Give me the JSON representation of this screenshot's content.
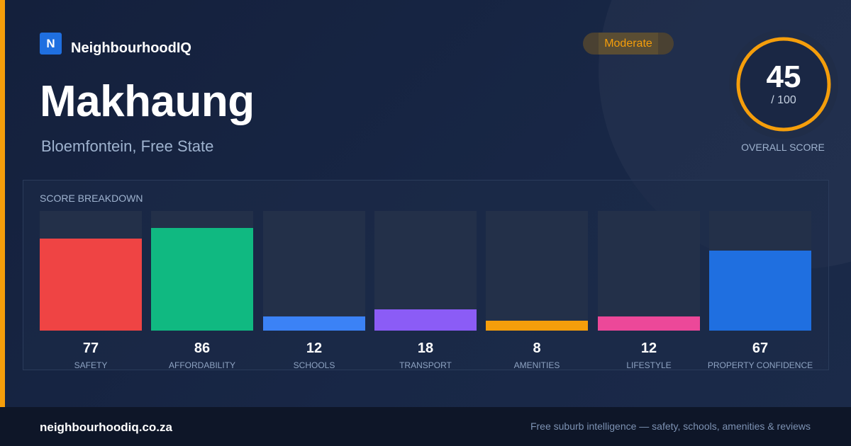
{
  "brand": {
    "logo_letter": "N",
    "name": "NeighbourhoodIQ"
  },
  "badge": {
    "label": "Moderate"
  },
  "suburb": {
    "name": "Makhaung",
    "location": "Bloemfontein, Free State"
  },
  "overall": {
    "score": "45",
    "denominator": "/ 100",
    "caption": "OVERALL SCORE",
    "ring_color": "#f59e0b"
  },
  "breakdown": {
    "title": "SCORE BREAKDOWN",
    "items": [
      {
        "label": "SAFETY",
        "value": 77,
        "color": "#ef4444"
      },
      {
        "label": "AFFORDABILITY",
        "value": 86,
        "color": "#10b981"
      },
      {
        "label": "SCHOOLS",
        "value": 12,
        "color": "#3b82f6"
      },
      {
        "label": "TRANSPORT",
        "value": 18,
        "color": "#8b5cf6"
      },
      {
        "label": "AMENITIES",
        "value": 8,
        "color": "#f59e0b"
      },
      {
        "label": "LIFESTYLE",
        "value": 12,
        "color": "#ec4899"
      },
      {
        "label": "PROPERTY CONFIDENCE",
        "value": 67,
        "color": "#1f6fe0"
      }
    ]
  },
  "footer": {
    "url": "neighbourhoodiq.co.za",
    "tagline": "Free suburb intelligence — safety, schools, amenities & reviews"
  }
}
